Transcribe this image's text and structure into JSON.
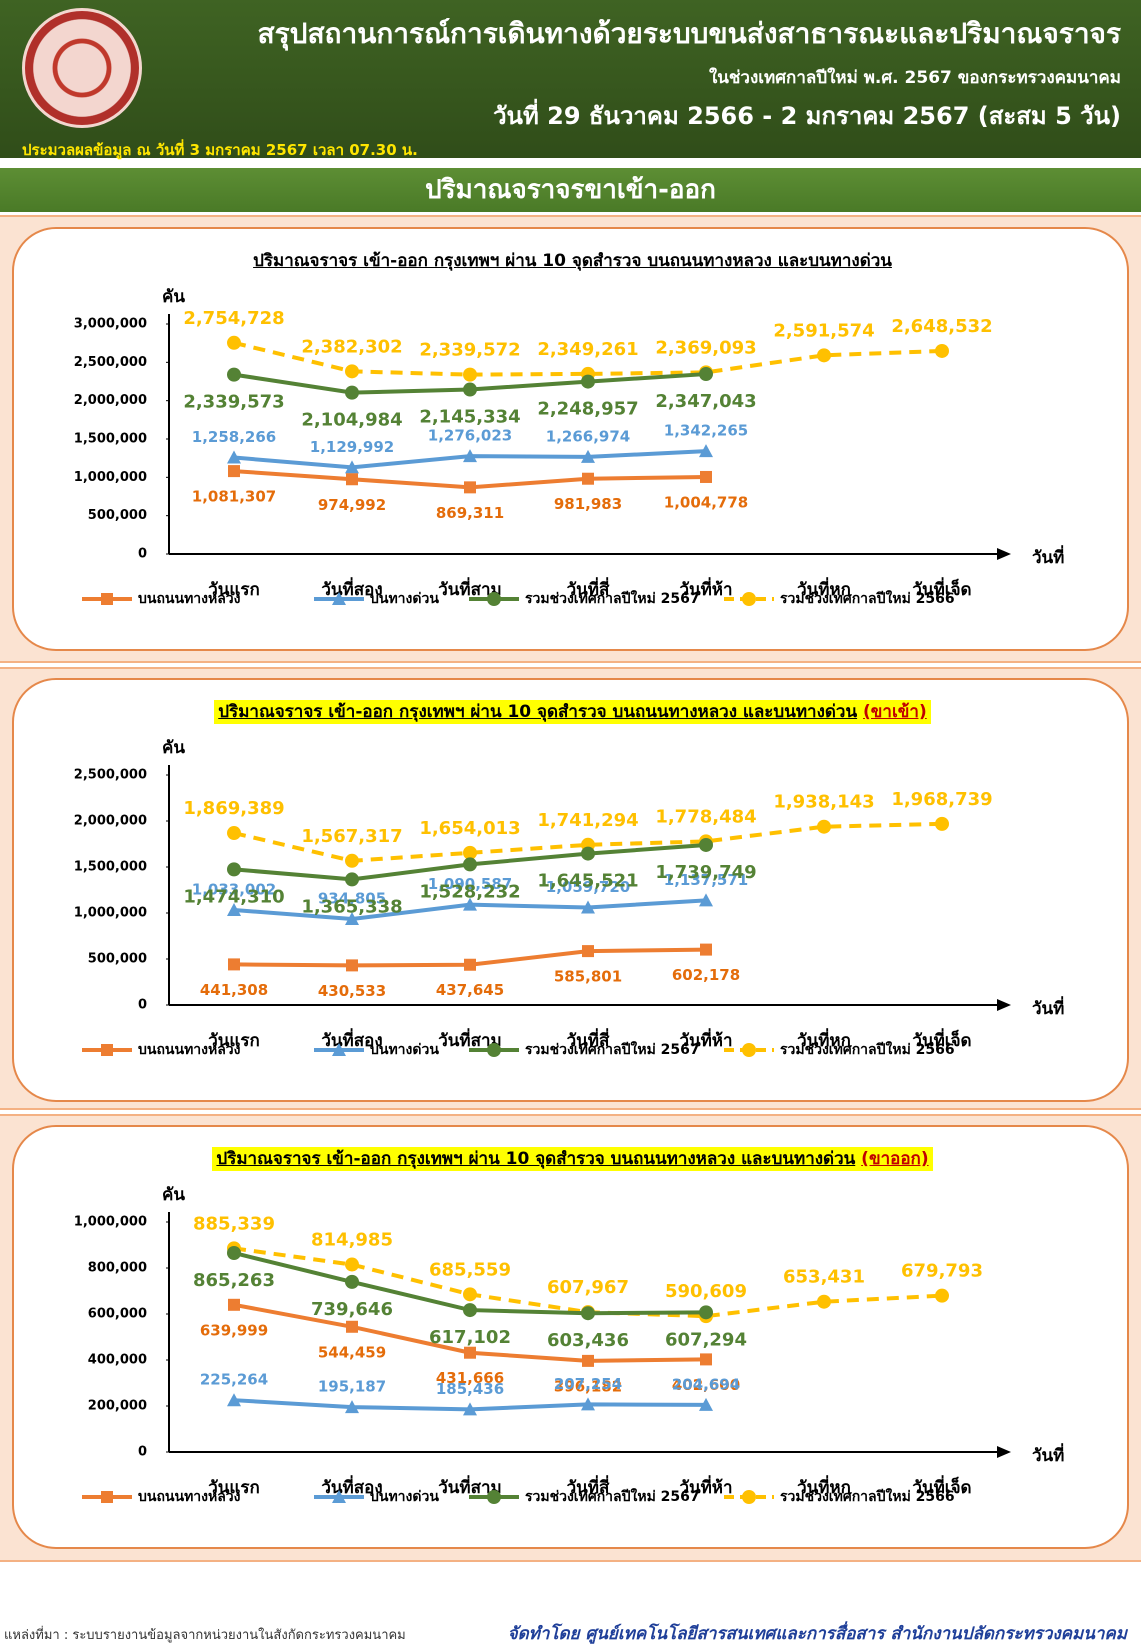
{
  "header": {
    "title": "สรุปสถานการณ์การเดินทางด้วยระบบขนส่งสาธารณะและปริมาณจราจร",
    "subtitle": "ในช่วงเทศกาลปีใหม่ พ.ศ. 2567 ของกระทรวงคมนาคม",
    "period": "วันที่ 29 ธันวาคม 2566 - 2 มกราคม 2567 (สะสม 5 วัน)",
    "note": "ประมวลผลข้อมูล ณ วันที่ 3 มกราคม 2567 เวลา 07.30 น.",
    "section": "ปริมาณจราจรขาเข้า-ออก"
  },
  "chart_data": [
    {
      "type": "line",
      "title": "ปริมาณจราจร เข้า-ออก กรุงเทพฯ ผ่าน 10 จุดสำรวจ บนถนนทางหลวง และบนทางด่วน",
      "highlight": false,
      "y_label": "คัน",
      "x_label": "วันที่",
      "categories": [
        "วันแรก",
        "วันที่สอง",
        "วันที่สาม",
        "วันที่สี่",
        "วันที่ห้า",
        "วันที่หก",
        "วันที่เจ็ด"
      ],
      "ylim": [
        0,
        3000000
      ],
      "yticks": [
        0,
        {
          "value": 500000,
          "label": "500,000"
        },
        {
          "value": 1000000,
          "label": "1,000,000"
        },
        {
          "value": 1500000,
          "label": "1,500,000"
        },
        {
          "value": 2000000,
          "label": "2,000,000"
        },
        {
          "value": 2500000,
          "label": "2,500,000"
        },
        {
          "value": 3000000,
          "label": "3,000,000"
        }
      ],
      "series": [
        {
          "name": "บนถนนทางหลวง",
          "color": "#ed7d31",
          "marker": "square",
          "dashed": false,
          "values": [
            1081307,
            974992,
            869311,
            981983,
            1004778,
            null,
            null
          ],
          "value_labels": [
            "1,081,307",
            "974,992",
            "869,311",
            "981,983",
            "1,004,778",
            null,
            null
          ]
        },
        {
          "name": "บนทางด่วน",
          "color": "#5b9bd5",
          "marker": "triangle",
          "dashed": false,
          "values": [
            1258266,
            1129992,
            1276023,
            1266974,
            1342265,
            null,
            null
          ],
          "value_labels": [
            "1,258,266",
            "1,129,992",
            "1,276,023",
            "1,266,974",
            "1,342,265",
            null,
            null
          ]
        },
        {
          "name": "รวมช่วงเทศกาลปีใหม่ 2567",
          "color": "#548235",
          "marker": "circle",
          "dashed": false,
          "values": [
            2339573,
            2104984,
            2145334,
            2248957,
            2347043,
            null,
            null
          ],
          "value_labels": [
            "2,339,573",
            "2,104,984",
            "2,145,334",
            "2,248,957",
            "2,347,043",
            null,
            null
          ]
        },
        {
          "name": "รวมช่วงเทศกาลปีใหม่ 2566",
          "color": "#ffc000",
          "marker": "circle",
          "dashed": true,
          "values": [
            2754728,
            2382302,
            2339572,
            2349261,
            2369093,
            2591574,
            2648532
          ],
          "value_labels": [
            "2,754,728",
            "2,382,302",
            "2,339,572",
            "2,349,261",
            "2,369,093",
            "2,591,574",
            "2,648,532"
          ]
        }
      ]
    },
    {
      "type": "line",
      "title": "ปริมาณจราจร เข้า-ออก กรุงเทพฯ ผ่าน 10 จุดสำรวจ บนถนนทางหลวง และบนทางด่วน",
      "title_tag": "(ขาเข้า)",
      "highlight": true,
      "y_label": "คัน",
      "x_label": "วันที่",
      "categories": [
        "วันแรก",
        "วันที่สอง",
        "วันที่สาม",
        "วันที่สี่",
        "วันที่ห้า",
        "วันที่หก",
        "วันที่เจ็ด"
      ],
      "ylim": [
        0,
        2500000
      ],
      "yticks": [
        0,
        {
          "value": 500000,
          "label": "500,000"
        },
        {
          "value": 1000000,
          "label": "1,000,000"
        },
        {
          "value": 1500000,
          "label": "1,500,000"
        },
        {
          "value": 2000000,
          "label": "2,000,000"
        },
        {
          "value": 2500000,
          "label": "2,500,000"
        }
      ],
      "series": [
        {
          "name": "บนถนนทางหลวง",
          "color": "#ed7d31",
          "marker": "square",
          "dashed": false,
          "values": [
            441308,
            430533,
            437645,
            585801,
            602178,
            null,
            null
          ],
          "value_labels": [
            "441,308",
            "430,533",
            "437,645",
            "585,801",
            "602,178",
            null,
            null
          ]
        },
        {
          "name": "บนทางด่วน",
          "color": "#5b9bd5",
          "marker": "triangle",
          "dashed": false,
          "values": [
            1033002,
            934805,
            1090587,
            1059720,
            1137571,
            null,
            null
          ],
          "value_labels": [
            "1,033,002",
            "934,805",
            "1,090,587",
            "1,059,720",
            "1,137,571",
            null,
            null
          ]
        },
        {
          "name": "รวมช่วงเทศกาลปีใหม่ 2567",
          "color": "#548235",
          "marker": "circle",
          "dashed": false,
          "values": [
            1474310,
            1365338,
            1528232,
            1645521,
            1739749,
            null,
            null
          ],
          "value_labels": [
            "1,474,310",
            "1,365,338",
            "1,528,232",
            "1,645,521",
            "1,739,749",
            null,
            null
          ]
        },
        {
          "name": "รวมช่วงเทศกาลปีใหม่ 2566",
          "color": "#ffc000",
          "marker": "circle",
          "dashed": true,
          "values": [
            1869389,
            1567317,
            1654013,
            1741294,
            1778484,
            1938143,
            1968739
          ],
          "value_labels": [
            "1,869,389",
            "1,567,317",
            "1,654,013",
            "1,741,294",
            "1,778,484",
            "1,938,143",
            "1,968,739"
          ]
        }
      ]
    },
    {
      "type": "line",
      "title": "ปริมาณจราจร เข้า-ออก กรุงเทพฯ ผ่าน 10 จุดสำรวจ บนถนนทางหลวง และบนทางด่วน",
      "title_tag": "(ขาออก)",
      "highlight": true,
      "y_label": "คัน",
      "x_label": "วันที่",
      "categories": [
        "วันแรก",
        "วันที่สอง",
        "วันที่สาม",
        "วันที่สี่",
        "วันที่ห้า",
        "วันที่หก",
        "วันที่เจ็ด"
      ],
      "ylim": [
        0,
        1000000
      ],
      "yticks": [
        0,
        {
          "value": 200000,
          "label": "200,000"
        },
        {
          "value": 400000,
          "label": "400,000"
        },
        {
          "value": 600000,
          "label": "600,000"
        },
        {
          "value": 800000,
          "label": "800,000"
        },
        {
          "value": 1000000,
          "label": "1,000,000"
        }
      ],
      "series": [
        {
          "name": "บนถนนทางหลวง",
          "color": "#ed7d31",
          "marker": "square",
          "dashed": false,
          "values": [
            639999,
            544459,
            431666,
            396182,
            402600,
            null,
            null
          ],
          "value_labels": [
            "639,999",
            "544,459",
            "431,666",
            "396,182",
            "402,600",
            null,
            null
          ]
        },
        {
          "name": "บนทางด่วน",
          "color": "#5b9bd5",
          "marker": "triangle",
          "dashed": false,
          "values": [
            225264,
            195187,
            185436,
            207254,
            204694,
            null,
            null
          ],
          "value_labels": [
            "225,264",
            "195,187",
            "185,436",
            "207,254",
            "204,694",
            null,
            null
          ]
        },
        {
          "name": "รวมช่วงเทศกาลปีใหม่ 2567",
          "color": "#548235",
          "marker": "circle",
          "dashed": false,
          "values": [
            865263,
            739646,
            617102,
            603436,
            607294,
            null,
            null
          ],
          "value_labels": [
            "865,263",
            "739,646",
            "617,102",
            "603,436",
            "607,294",
            null,
            null
          ]
        },
        {
          "name": "รวมช่วงเทศกาลปีใหม่ 2566",
          "color": "#ffc000",
          "marker": "circle",
          "dashed": true,
          "values": [
            885339,
            814985,
            685559,
            607967,
            590609,
            653431,
            679793
          ],
          "value_labels": [
            "885,339",
            "814,985",
            "685,559",
            "607,967",
            "590,609",
            "653,431",
            "679,793"
          ]
        }
      ]
    }
  ],
  "footer": {
    "source": "แหล่งที่มา : ระบบรายงานข้อมูลจากหน่วยงานในสังกัดกระทรวงคมนาคม",
    "credit": "จัดทำโดย ศูนย์เทคโนโลยีสารสนเทศและการสื่อสาร สำนักงานปลัดกระทรวงคมนาคม"
  }
}
